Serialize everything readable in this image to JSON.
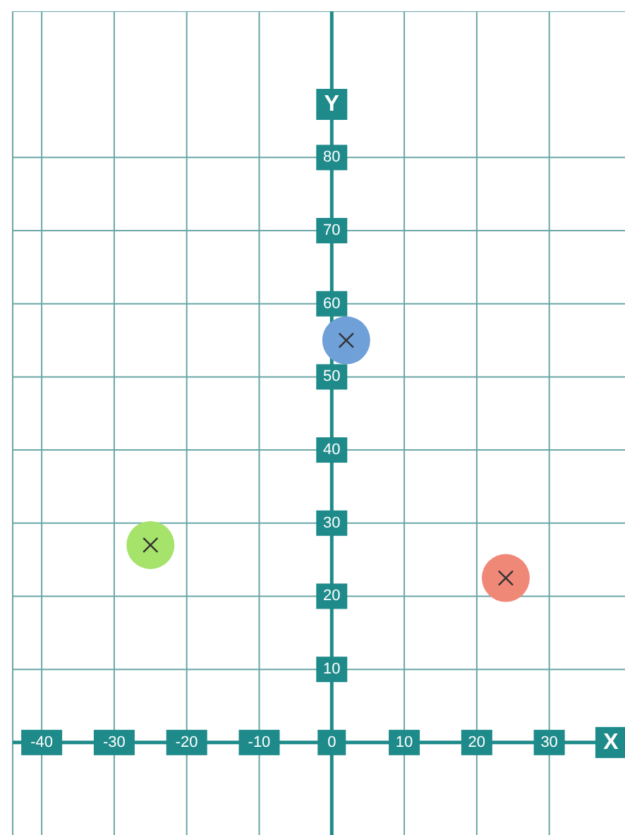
{
  "chart_data": {
    "type": "scatter",
    "xlabel": "X",
    "ylabel": "Y",
    "xlim": [
      -44,
      42
    ],
    "ylim": [
      -14,
      100
    ],
    "xticks": [
      -40,
      -30,
      -20,
      -10,
      0,
      10,
      20,
      30
    ],
    "yticks": [
      10,
      20,
      30,
      40,
      50,
      60,
      70,
      80
    ],
    "grid": true,
    "marker": "circle",
    "series": [
      {
        "color": "#6fa0d8",
        "x": [
          2
        ],
        "values": [
          55
        ]
      },
      {
        "color": "#a6e36a",
        "x": [
          -25
        ],
        "values": [
          27
        ]
      },
      {
        "color": "#f08878",
        "x": [
          24
        ],
        "values": [
          22.5
        ]
      }
    ]
  }
}
